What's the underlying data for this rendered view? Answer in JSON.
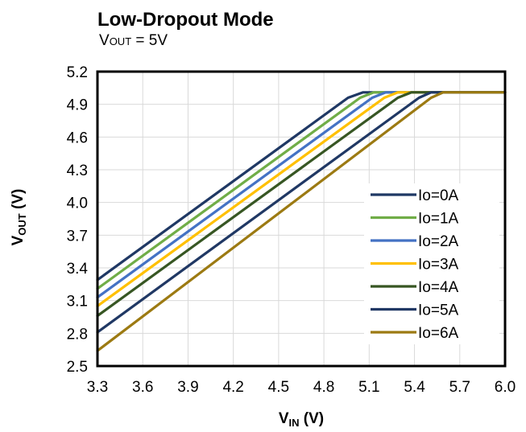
{
  "chart_data": {
    "type": "line",
    "title": "Low-Dropout Mode",
    "subtitle": {
      "main": "V",
      "sub": "OUT",
      "rest": " = 5V"
    },
    "xlabel": {
      "main": "V",
      "sub": "IN",
      "rest": " (V)"
    },
    "ylabel": {
      "main": "V",
      "sub": "OUT",
      "rest": " (V)"
    },
    "xlim": [
      3.3,
      6.0
    ],
    "ylim": [
      2.5,
      5.2
    ],
    "xticks": [
      "3.3",
      "3.6",
      "3.9",
      "4.2",
      "4.5",
      "4.8",
      "5.1",
      "5.4",
      "5.7",
      "6.0"
    ],
    "yticks": [
      "2.5",
      "2.8",
      "3.1",
      "3.4",
      "3.7",
      "4.0",
      "4.3",
      "4.6",
      "4.9",
      "5.2"
    ],
    "grid": true,
    "legend_position": "right",
    "series": [
      {
        "name": "Io=0A",
        "color": "#1F3864",
        "points": [
          [
            3.3,
            3.29
          ],
          [
            4.96,
            4.96
          ],
          [
            5.06,
            5.01
          ],
          [
            6.0,
            5.01
          ]
        ]
      },
      {
        "name": "Io=1A",
        "color": "#70AD47",
        "points": [
          [
            3.3,
            3.21
          ],
          [
            5.04,
            4.96
          ],
          [
            5.13,
            5.01
          ],
          [
            6.0,
            5.01
          ]
        ]
      },
      {
        "name": "Io=2A",
        "color": "#4472C4",
        "points": [
          [
            3.3,
            3.13
          ],
          [
            5.12,
            4.96
          ],
          [
            5.21,
            5.01
          ],
          [
            6.0,
            5.01
          ]
        ]
      },
      {
        "name": "Io=3A",
        "color": "#FFC000",
        "points": [
          [
            3.3,
            3.05
          ],
          [
            5.2,
            4.96
          ],
          [
            5.29,
            5.01
          ],
          [
            6.0,
            5.01
          ]
        ]
      },
      {
        "name": "Io=4A",
        "color": "#375623",
        "points": [
          [
            3.3,
            2.96
          ],
          [
            5.29,
            4.96
          ],
          [
            5.38,
            5.01
          ],
          [
            6.0,
            5.01
          ]
        ]
      },
      {
        "name": "Io=5A",
        "color": "#203864",
        "points": [
          [
            3.3,
            2.81
          ],
          [
            5.43,
            4.96
          ],
          [
            5.51,
            5.01
          ],
          [
            6.0,
            5.01
          ]
        ]
      },
      {
        "name": "Io=6A",
        "color": "#9C7A12",
        "points": [
          [
            3.3,
            2.64
          ],
          [
            5.51,
            4.96
          ],
          [
            5.59,
            5.01
          ],
          [
            6.0,
            5.01
          ]
        ]
      }
    ]
  }
}
